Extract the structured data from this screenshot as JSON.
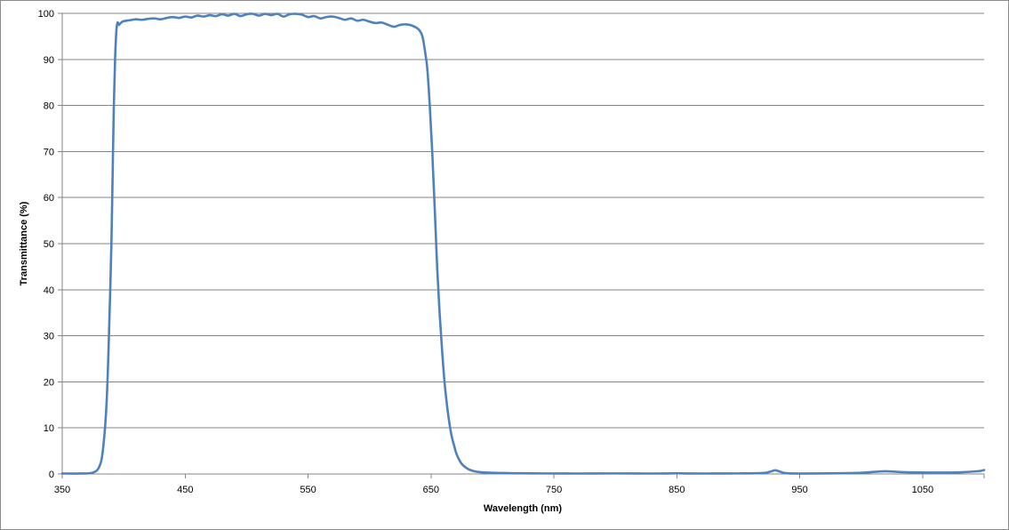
{
  "chart_data": {
    "type": "line",
    "title": "",
    "xlabel": "Wavelength (nm)",
    "ylabel": "Transmittance  (%)",
    "xlim": [
      350,
      1100
    ],
    "ylim": [
      0,
      100
    ],
    "x_ticks": [
      350,
      450,
      550,
      650,
      750,
      850,
      950,
      1050
    ],
    "y_ticks": [
      0,
      10,
      20,
      30,
      40,
      50,
      60,
      70,
      80,
      90,
      100
    ],
    "grid": "horizontal",
    "legend": "none",
    "line_color": "#4f81bd",
    "series": [
      {
        "x": [
          350,
          365,
          375,
          380,
          383,
          386,
          388,
          390,
          391,
          392,
          393,
          394,
          395,
          396,
          398,
          400,
          405,
          410,
          415,
          420,
          425,
          430,
          435,
          440,
          445,
          450,
          455,
          460,
          465,
          470,
          475,
          480,
          485,
          490,
          495,
          500,
          505,
          510,
          515,
          520,
          525,
          530,
          535,
          540,
          545,
          550,
          555,
          560,
          565,
          570,
          575,
          580,
          585,
          590,
          595,
          600,
          605,
          610,
          615,
          620,
          625,
          630,
          635,
          640,
          643,
          645,
          647,
          649,
          651,
          653,
          655,
          657,
          659,
          661,
          663,
          665,
          667,
          669,
          671,
          675,
          680,
          685,
          690,
          695,
          700,
          710,
          720,
          740,
          760,
          780,
          800,
          820,
          840,
          850,
          860,
          880,
          900,
          920,
          926,
          930,
          934,
          938,
          945,
          960,
          980,
          1000,
          1010,
          1020,
          1030,
          1040,
          1060,
          1080,
          1095,
          1100
        ],
        "y": [
          0.1,
          0.1,
          0.3,
          1.5,
          5,
          15,
          30,
          50,
          65,
          80,
          90,
          96,
          98,
          97.5,
          98,
          98.3,
          98.5,
          98.7,
          98.6,
          98.8,
          98.9,
          98.7,
          99,
          99.2,
          99,
          99.3,
          99.1,
          99.5,
          99.3,
          99.6,
          99.4,
          99.8,
          99.5,
          99.9,
          99.4,
          99.8,
          99.9,
          99.5,
          99.9,
          99.6,
          99.9,
          99.3,
          99.8,
          99.9,
          99.7,
          99.2,
          99.4,
          98.9,
          99.2,
          99.3,
          99.0,
          98.6,
          98.9,
          98.4,
          98.6,
          98.2,
          97.9,
          98.0,
          97.5,
          97.1,
          97.5,
          97.6,
          97.3,
          96.5,
          95,
          92,
          88,
          80,
          70,
          58,
          45,
          35,
          27,
          20,
          15,
          11,
          8,
          6,
          4.2,
          2.2,
          1.1,
          0.6,
          0.4,
          0.3,
          0.25,
          0.2,
          0.15,
          0.12,
          0.1,
          0.1,
          0.12,
          0.1,
          0.1,
          0.15,
          0.1,
          0.1,
          0.12,
          0.2,
          0.5,
          0.8,
          0.5,
          0.2,
          0.1,
          0.1,
          0.15,
          0.25,
          0.45,
          0.6,
          0.45,
          0.35,
          0.3,
          0.35,
          0.6,
          0.85
        ]
      }
    ]
  }
}
